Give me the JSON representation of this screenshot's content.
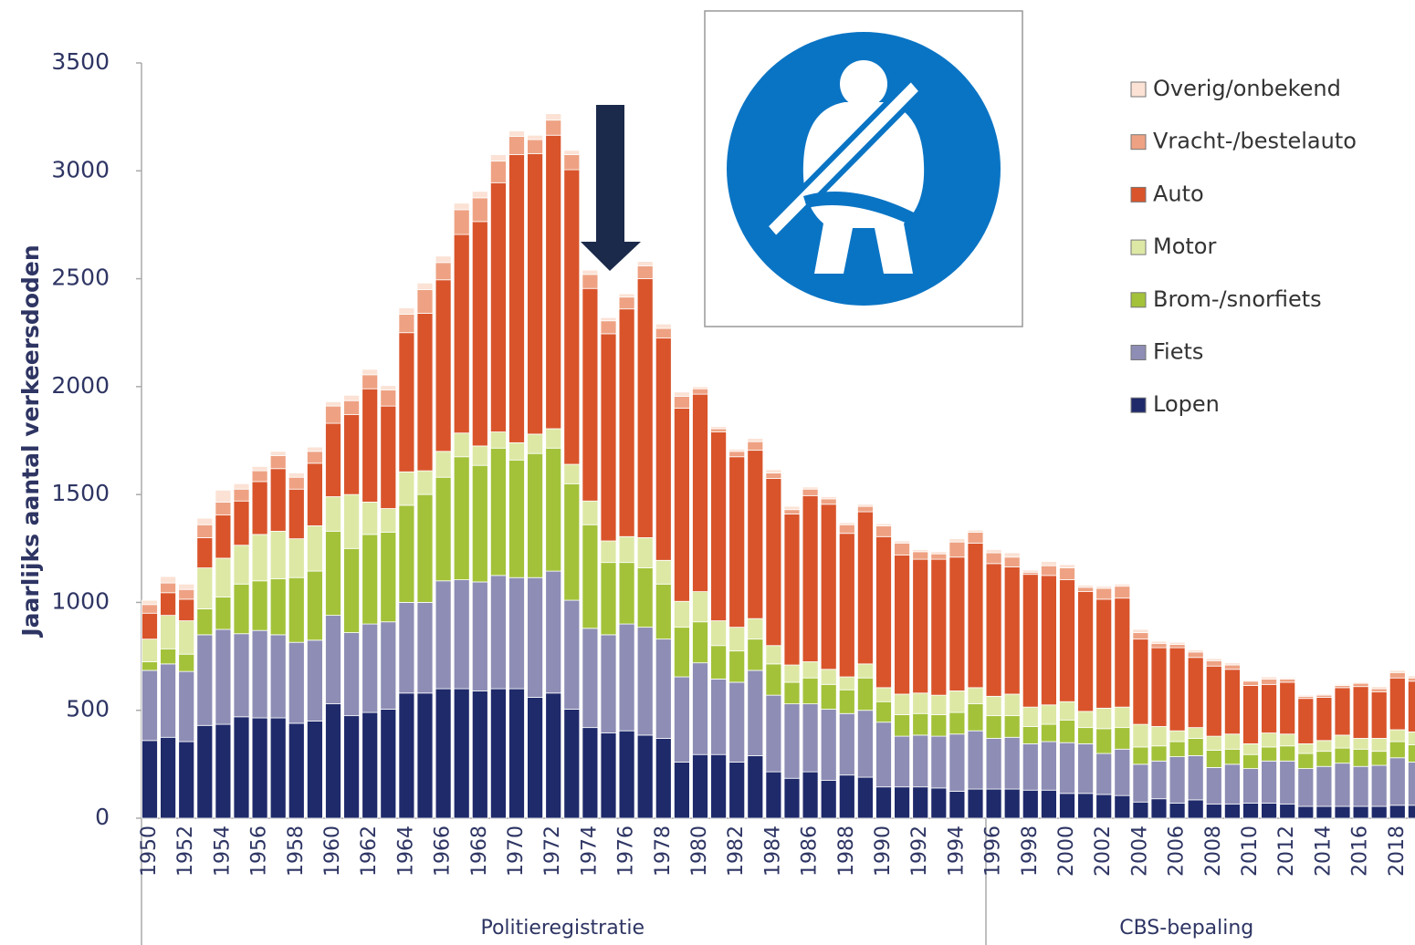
{
  "chart_data": {
    "type": "stacked-bar",
    "y_label": "Jaarlijks aantal verkeersdoden",
    "categories": [
      "1950",
      null,
      "1952",
      null,
      "1954",
      null,
      "1956",
      null,
      "1958",
      null,
      "1960",
      null,
      "1962",
      null,
      "1964",
      null,
      "1966",
      null,
      "1968",
      null,
      "1970",
      null,
      "1972",
      null,
      "1974",
      null,
      "1976",
      null,
      "1978",
      null,
      "1980",
      null,
      "1982",
      null,
      "1984",
      null,
      "1986",
      null,
      "1988",
      null,
      "1990",
      null,
      "1992",
      null,
      "1994",
      null,
      "1996",
      null,
      "1998",
      null,
      "2000",
      null,
      "2002",
      null,
      "2004",
      null,
      "2006",
      null,
      "2008",
      null,
      "2010",
      null,
      "2012",
      null,
      "2014",
      null,
      "2016",
      null,
      "2018",
      null
    ],
    "groups": [
      "Politieregistratie",
      "CBS-bepaling"
    ],
    "ylim": [
      0,
      3500
    ],
    "yticks": [
      0,
      500,
      1000,
      1500,
      2000,
      2500,
      3000,
      3500
    ],
    "grid": false,
    "legend": "top-right",
    "series": [
      {
        "name": "Lopen",
        "color": "#1f2a6b",
        "values": [
          360,
          375,
          355,
          430,
          435,
          470,
          465,
          465,
          440,
          450,
          530,
          475,
          490,
          505,
          580,
          580,
          600,
          600,
          590,
          600,
          600,
          560,
          580,
          505,
          420,
          395,
          405,
          385,
          370,
          260,
          295,
          295,
          260,
          290,
          215,
          185,
          215,
          175,
          200,
          190,
          145,
          145,
          145,
          140,
          125,
          135,
          135,
          135,
          130,
          130,
          115,
          115,
          110,
          105,
          75,
          90,
          70,
          85,
          65,
          65,
          70,
          70,
          65,
          55,
          55,
          55,
          55,
          55,
          60,
          60
        ]
      },
      {
        "name": "Fiets",
        "color": "#8d8db5",
        "values": [
          325,
          340,
          325,
          420,
          440,
          385,
          405,
          385,
          375,
          375,
          410,
          385,
          410,
          405,
          420,
          420,
          500,
          505,
          505,
          525,
          515,
          555,
          565,
          505,
          460,
          455,
          495,
          500,
          460,
          395,
          425,
          350,
          370,
          395,
          355,
          345,
          315,
          330,
          285,
          310,
          300,
          235,
          240,
          240,
          265,
          270,
          235,
          240,
          215,
          225,
          235,
          230,
          190,
          215,
          175,
          175,
          215,
          205,
          170,
          185,
          160,
          195,
          200,
          175,
          185,
          200,
          185,
          190,
          220,
          200
        ]
      },
      {
        "name": "Brom-/snorfiets",
        "color": "#a3c23a",
        "values": [
          40,
          70,
          80,
          120,
          150,
          230,
          230,
          260,
          300,
          320,
          390,
          390,
          415,
          415,
          450,
          500,
          480,
          570,
          540,
          590,
          545,
          575,
          570,
          540,
          480,
          335,
          285,
          275,
          255,
          230,
          190,
          155,
          145,
          145,
          145,
          100,
          120,
          115,
          110,
          150,
          95,
          100,
          100,
          100,
          100,
          125,
          105,
          100,
          80,
          80,
          105,
          75,
          115,
          100,
          80,
          70,
          70,
          80,
          80,
          70,
          65,
          65,
          70,
          70,
          70,
          70,
          80,
          65,
          75,
          80
        ]
      },
      {
        "name": "Motor",
        "color": "#dde8a5",
        "values": [
          105,
          155,
          155,
          190,
          180,
          180,
          215,
          220,
          180,
          210,
          160,
          250,
          150,
          110,
          155,
          110,
          120,
          110,
          90,
          75,
          80,
          90,
          90,
          90,
          110,
          100,
          120,
          140,
          110,
          120,
          140,
          115,
          110,
          95,
          85,
          80,
          75,
          70,
          60,
          65,
          65,
          95,
          95,
          90,
          100,
          75,
          90,
          100,
          90,
          90,
          85,
          75,
          95,
          95,
          105,
          90,
          50,
          50,
          65,
          70,
          50,
          65,
          55,
          45,
          50,
          60,
          50,
          60,
          55,
          60
        ]
      },
      {
        "name": "Auto",
        "color": "#d9542b",
        "values": [
          120,
          105,
          100,
          140,
          200,
          205,
          245,
          290,
          230,
          290,
          340,
          370,
          525,
          475,
          645,
          730,
          795,
          920,
          1040,
          1155,
          1335,
          1300,
          1360,
          1365,
          985,
          960,
          1055,
          1200,
          1030,
          895,
          915,
          875,
          790,
          780,
          775,
          700,
          770,
          765,
          665,
          705,
          700,
          645,
          620,
          630,
          620,
          670,
          615,
          590,
          615,
          600,
          565,
          555,
          505,
          505,
          395,
          365,
          385,
          325,
          325,
          300,
          270,
          225,
          240,
          210,
          200,
          220,
          240,
          215,
          240,
          235
        ]
      },
      {
        "name": "Vracht-/bestelauto",
        "color": "#eea283",
        "values": [
          40,
          45,
          45,
          60,
          60,
          55,
          50,
          60,
          55,
          55,
          80,
          65,
          65,
          75,
          85,
          110,
          80,
          115,
          110,
          100,
          85,
          65,
          70,
          70,
          65,
          60,
          55,
          60,
          45,
          55,
          25,
          15,
          25,
          40,
          25,
          20,
          30,
          25,
          40,
          25,
          50,
          55,
          35,
          25,
          70,
          50,
          50,
          45,
          10,
          45,
          55,
          20,
          50,
          55,
          30,
          20,
          15,
          25,
          25,
          20,
          20,
          25,
          15,
          10,
          10,
          10,
          15,
          15,
          25,
          15
        ]
      },
      {
        "name": "Overig/onbekend",
        "color": "#fbe2d5",
        "values": [
          20,
          30,
          25,
          30,
          55,
          25,
          20,
          20,
          20,
          20,
          20,
          25,
          25,
          20,
          30,
          30,
          30,
          30,
          30,
          30,
          25,
          20,
          30,
          20,
          20,
          15,
          15,
          20,
          20,
          20,
          10,
          10,
          10,
          15,
          15,
          15,
          10,
          10,
          10,
          10,
          10,
          10,
          10,
          10,
          15,
          10,
          15,
          20,
          10,
          20,
          15,
          10,
          10,
          10,
          15,
          10,
          10,
          10,
          10,
          10,
          5,
          10,
          5,
          5,
          5,
          5,
          5,
          10,
          10,
          10
        ]
      }
    ]
  }
}
